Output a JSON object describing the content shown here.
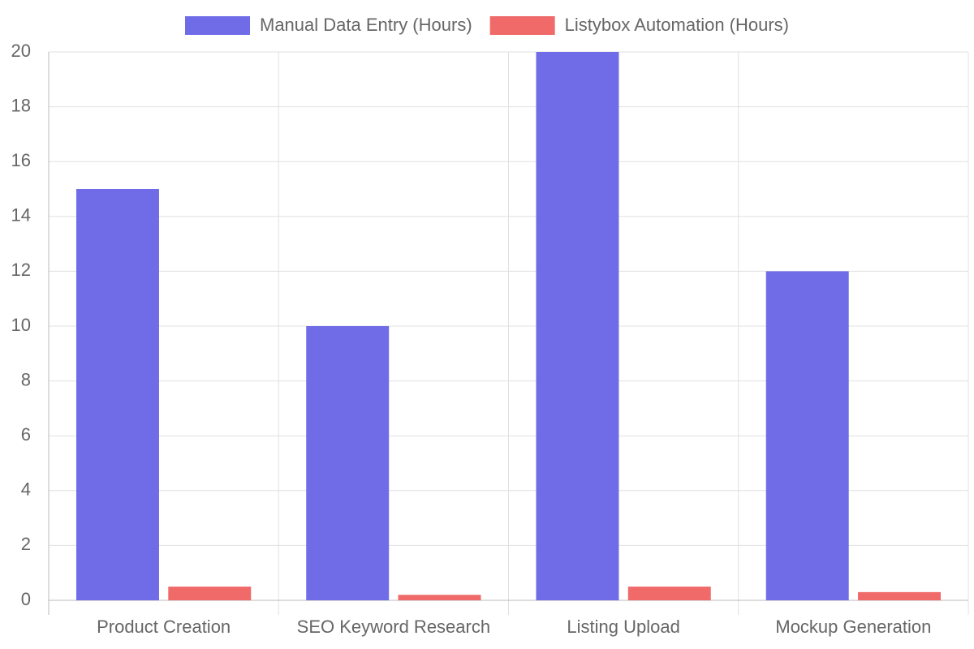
{
  "chart_data": {
    "type": "bar",
    "categories": [
      "Product Creation",
      "SEO Keyword Research",
      "Listing Upload",
      "Mockup Generation"
    ],
    "series": [
      {
        "name": "Manual Data Entry (Hours)",
        "color": "#706ce8",
        "values": [
          15,
          10,
          20,
          12
        ]
      },
      {
        "name": "Listybox Automation (Hours)",
        "color": "#f06a6a",
        "values": [
          0.5,
          0.2,
          0.5,
          0.3
        ]
      }
    ],
    "ylim": [
      0,
      20
    ],
    "yticks": [
      0,
      2,
      4,
      6,
      8,
      10,
      12,
      14,
      16,
      18,
      20
    ],
    "grid": true,
    "legend": "top"
  }
}
